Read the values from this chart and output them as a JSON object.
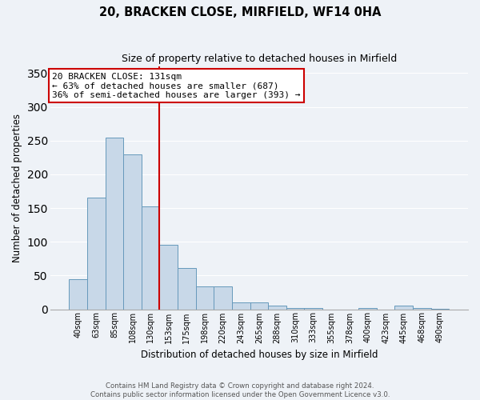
{
  "title1": "20, BRACKEN CLOSE, MIRFIELD, WF14 0HA",
  "title2": "Size of property relative to detached houses in Mirfield",
  "xlabel": "Distribution of detached houses by size in Mirfield",
  "ylabel": "Number of detached properties",
  "bin_labels": [
    "40sqm",
    "63sqm",
    "85sqm",
    "108sqm",
    "130sqm",
    "153sqm",
    "175sqm",
    "198sqm",
    "220sqm",
    "243sqm",
    "265sqm",
    "288sqm",
    "310sqm",
    "333sqm",
    "355sqm",
    "378sqm",
    "400sqm",
    "423sqm",
    "445sqm",
    "468sqm",
    "490sqm"
  ],
  "bar_heights": [
    45,
    165,
    255,
    230,
    152,
    96,
    61,
    34,
    34,
    10,
    10,
    5,
    2,
    2,
    0,
    0,
    2,
    0,
    5,
    2,
    1
  ],
  "bar_color": "#c8d8e8",
  "bar_edge_color": "#6699bb",
  "highlight_bar_index": 4,
  "highlight_line_color": "#cc0000",
  "annotation_line1": "20 BRACKEN CLOSE: 131sqm",
  "annotation_line2": "← 63% of detached houses are smaller (687)",
  "annotation_line3": "36% of semi-detached houses are larger (393) →",
  "annotation_box_color": "#ffffff",
  "annotation_box_edge_color": "#cc0000",
  "ylim": [
    0,
    360
  ],
  "yticks": [
    0,
    50,
    100,
    150,
    200,
    250,
    300,
    350
  ],
  "footer_line1": "Contains HM Land Registry data © Crown copyright and database right 2024.",
  "footer_line2": "Contains public sector information licensed under the Open Government Licence v3.0.",
  "background_color": "#eef2f7",
  "plot_bg_color": "#eef2f7",
  "grid_color": "#ffffff"
}
